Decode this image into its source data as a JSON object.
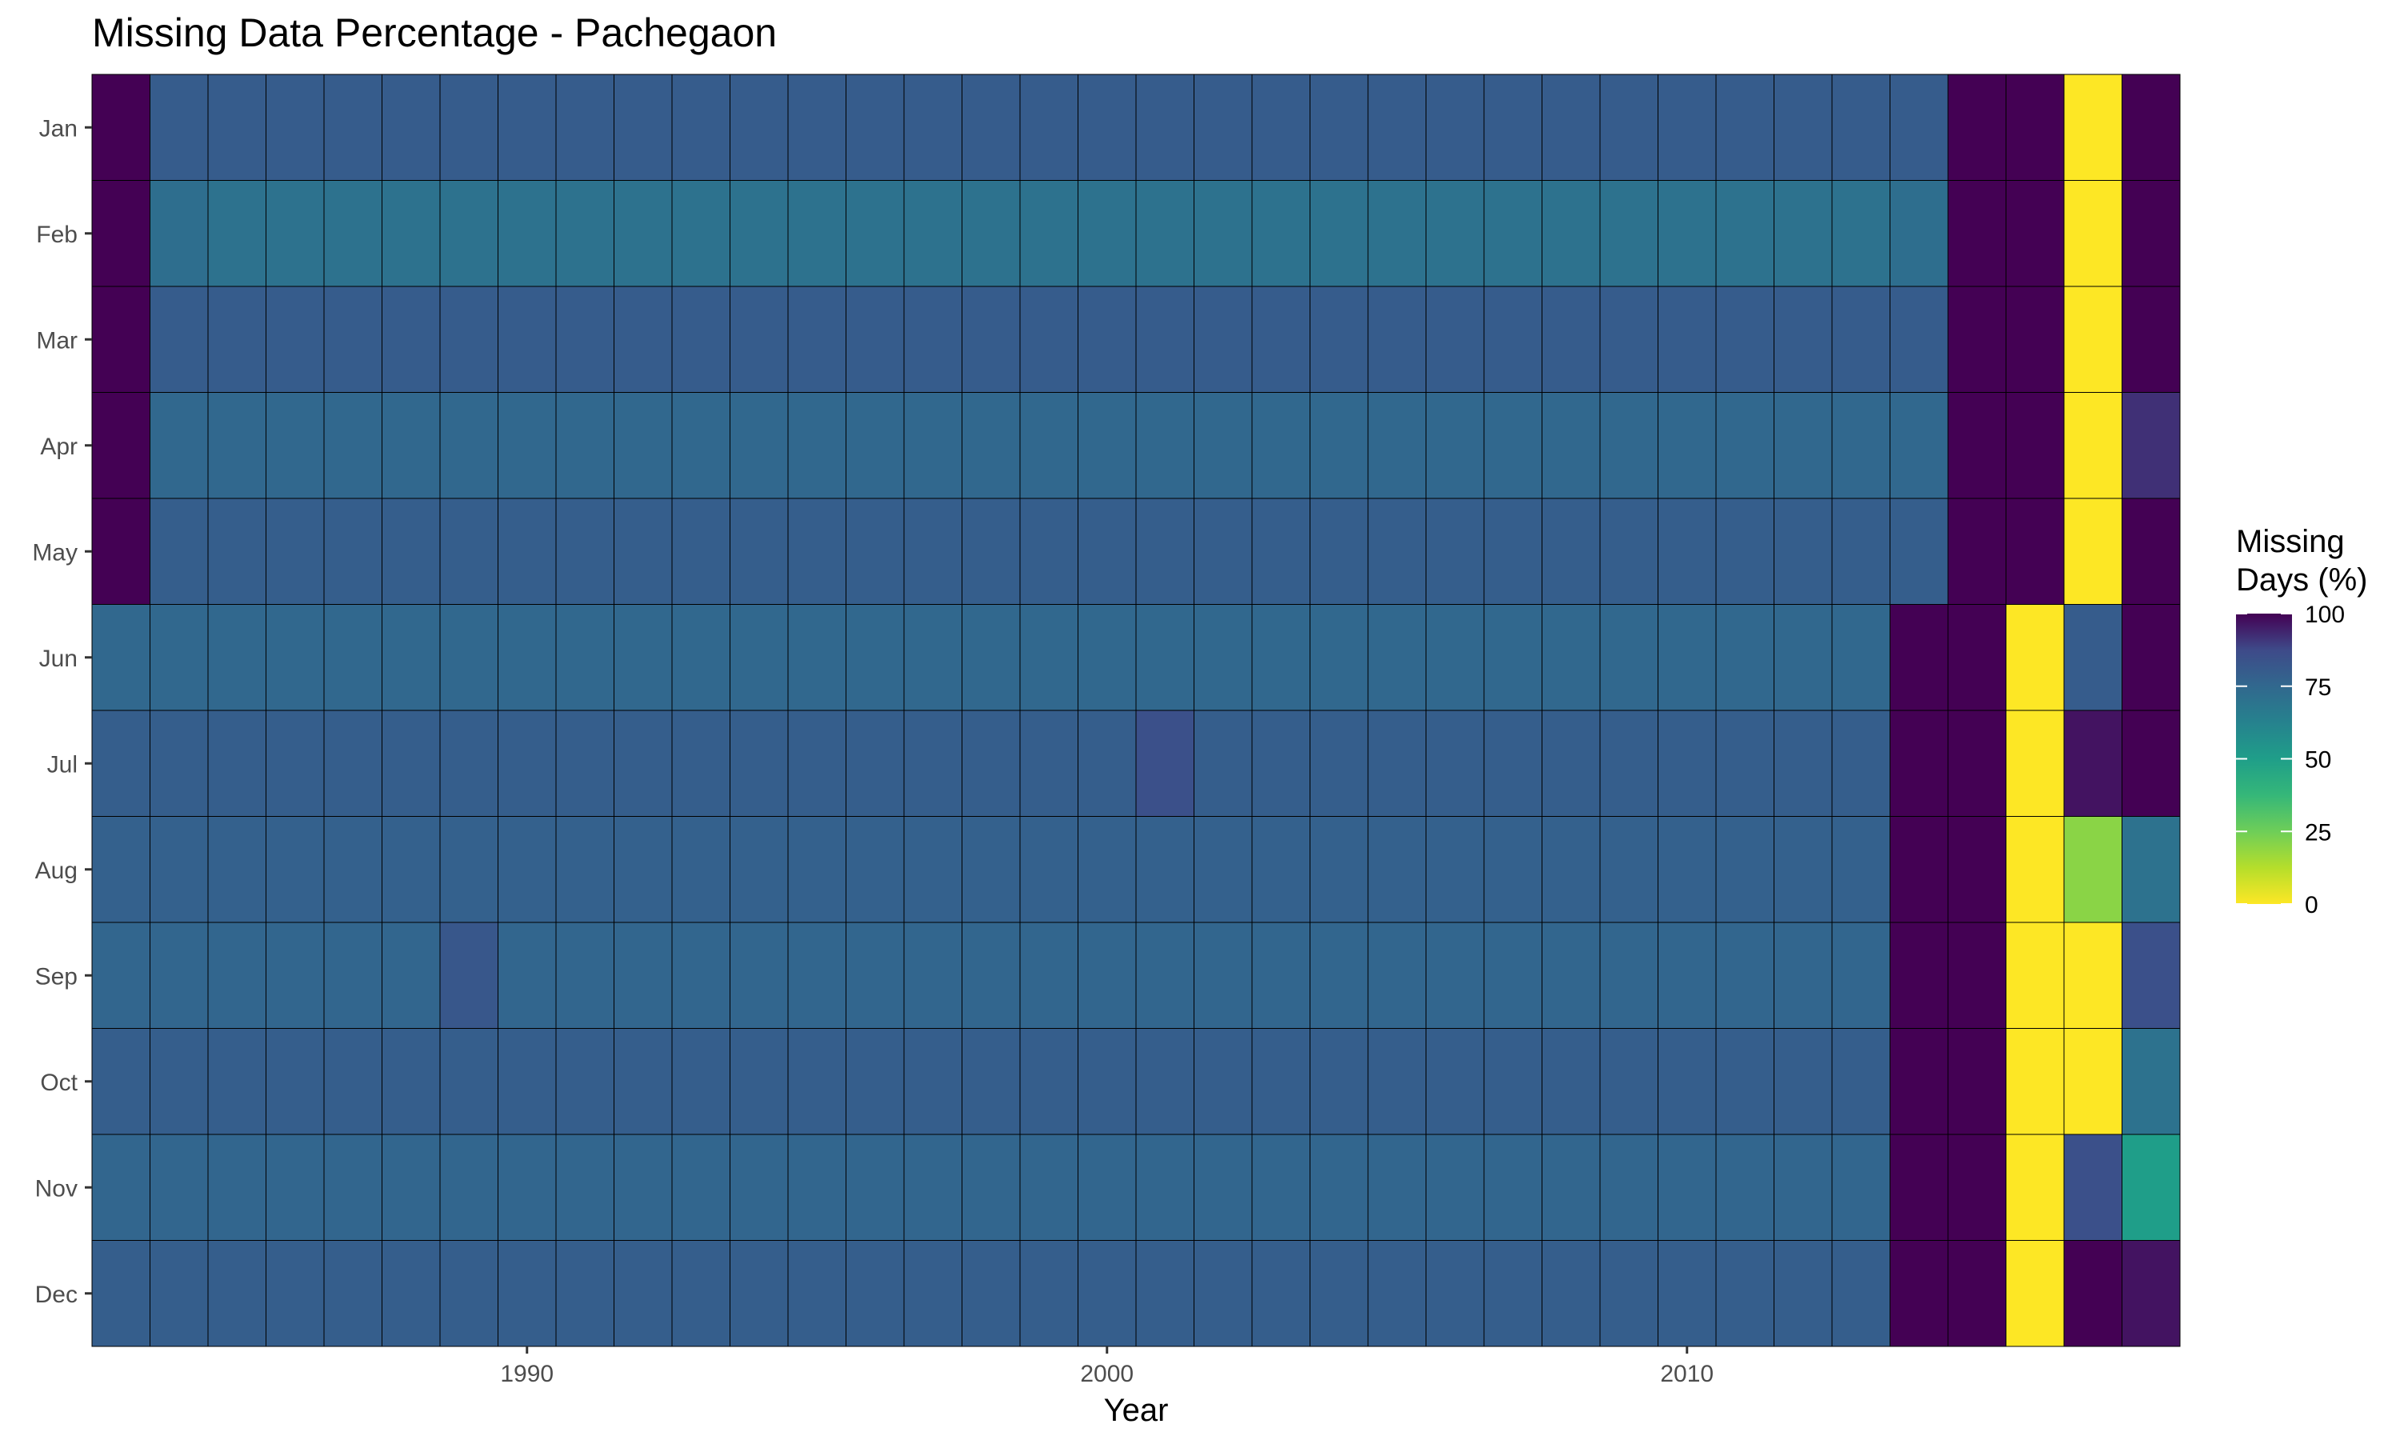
{
  "chart_data": {
    "type": "heatmap",
    "title": "Missing Data Percentage - Pachegaon",
    "xlabel": "Year",
    "ylabel": "",
    "x_start": 1983,
    "x_end": 2018,
    "x_ticks": [
      1990,
      2000,
      2010
    ],
    "months": [
      "Jan",
      "Feb",
      "Mar",
      "Apr",
      "May",
      "Jun",
      "Jul",
      "Aug",
      "Sep",
      "Oct",
      "Nov",
      "Dec"
    ],
    "legend": {
      "title_lines": [
        "Missing",
        "Days (%)"
      ],
      "ticks": [
        0,
        25,
        50,
        75,
        100
      ],
      "range": [
        0,
        100
      ],
      "colormap": "viridis reversed (0 = yellow, 100 = dark purple)"
    },
    "legend_position": "right",
    "grid": false,
    "values": [
      [
        100,
        80,
        80,
        80,
        80,
        80,
        80,
        80,
        80,
        80,
        80,
        80,
        80,
        80,
        80,
        80,
        80,
        80,
        80,
        80,
        80,
        80,
        80,
        80,
        80,
        80,
        80,
        80,
        80,
        80,
        80,
        80,
        100,
        100,
        0,
        100
      ],
      [
        100,
        72,
        70,
        70,
        70,
        70,
        70,
        70,
        70,
        70,
        70,
        70,
        70,
        70,
        70,
        70,
        70,
        70,
        70,
        70,
        70,
        70,
        70,
        70,
        70,
        70,
        70,
        70,
        70,
        70,
        70,
        72,
        100,
        100,
        0,
        100
      ],
      [
        100,
        80,
        80,
        80,
        80,
        80,
        80,
        80,
        80,
        80,
        80,
        80,
        80,
        80,
        80,
        80,
        80,
        80,
        80,
        80,
        80,
        80,
        80,
        80,
        80,
        80,
        80,
        80,
        80,
        80,
        80,
        80,
        100,
        100,
        0,
        100
      ],
      [
        100,
        75,
        75,
        75,
        75,
        75,
        75,
        75,
        75,
        75,
        75,
        75,
        75,
        75,
        75,
        75,
        75,
        75,
        75,
        75,
        75,
        75,
        75,
        75,
        75,
        75,
        75,
        75,
        75,
        75,
        75,
        75,
        100,
        100,
        0,
        92
      ],
      [
        100,
        79,
        79,
        79,
        79,
        79,
        79,
        79,
        79,
        79,
        79,
        79,
        79,
        79,
        79,
        79,
        79,
        79,
        79,
        79,
        79,
        79,
        79,
        79,
        79,
        79,
        79,
        79,
        79,
        79,
        79,
        79,
        100,
        100,
        0,
        100
      ],
      [
        75,
        75,
        75,
        75,
        75,
        75,
        75,
        75,
        75,
        75,
        75,
        75,
        75,
        75,
        75,
        75,
        75,
        75,
        75,
        75,
        75,
        75,
        75,
        75,
        75,
        75,
        75,
        75,
        75,
        75,
        75,
        100,
        100,
        0,
        80,
        100
      ],
      [
        79,
        79,
        79,
        79,
        79,
        79,
        79,
        79,
        79,
        79,
        79,
        79,
        79,
        79,
        79,
        79,
        79,
        79,
        85,
        79,
        79,
        79,
        79,
        79,
        79,
        79,
        79,
        79,
        79,
        79,
        79,
        100,
        100,
        0,
        97,
        100
      ],
      [
        78,
        78,
        78,
        78,
        78,
        78,
        78,
        78,
        78,
        78,
        78,
        78,
        78,
        78,
        78,
        78,
        78,
        78,
        78,
        78,
        78,
        78,
        78,
        78,
        78,
        78,
        78,
        78,
        78,
        78,
        78,
        100,
        100,
        0,
        20,
        70
      ],
      [
        76,
        76,
        76,
        76,
        76,
        76,
        82,
        76,
        76,
        76,
        76,
        76,
        76,
        76,
        76,
        76,
        76,
        76,
        76,
        76,
        76,
        76,
        76,
        76,
        76,
        76,
        76,
        76,
        76,
        76,
        76,
        100,
        100,
        0,
        0,
        85
      ],
      [
        79,
        79,
        79,
        79,
        79,
        79,
        79,
        79,
        79,
        79,
        79,
        79,
        79,
        79,
        79,
        79,
        79,
        79,
        79,
        79,
        79,
        79,
        79,
        79,
        79,
        79,
        79,
        79,
        79,
        79,
        79,
        100,
        100,
        0,
        0,
        70
      ],
      [
        76,
        76,
        76,
        76,
        76,
        76,
        76,
        76,
        76,
        76,
        76,
        76,
        76,
        76,
        76,
        76,
        76,
        76,
        76,
        76,
        76,
        76,
        76,
        76,
        76,
        76,
        76,
        76,
        76,
        76,
        76,
        100,
        100,
        0,
        85,
        50
      ],
      [
        79,
        79,
        79,
        79,
        79,
        79,
        79,
        79,
        79,
        79,
        79,
        79,
        79,
        79,
        79,
        79,
        79,
        79,
        79,
        79,
        79,
        79,
        79,
        79,
        79,
        79,
        79,
        79,
        79,
        79,
        79,
        100,
        100,
        0,
        100,
        97
      ]
    ]
  }
}
